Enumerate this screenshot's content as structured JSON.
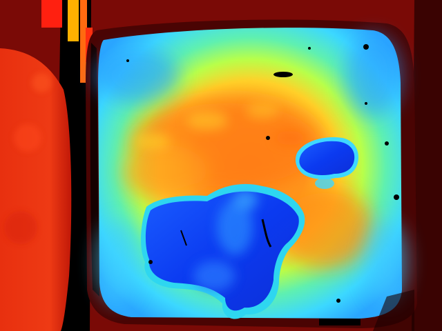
{
  "image": {
    "kind": "depth-map",
    "colormap": "jet",
    "palette": {
      "near": "#0b2de6",
      "mid_blue": "#2a8cff",
      "cyan": "#3fe0ff",
      "green": "#7dff7a",
      "yellow": "#ffe22a",
      "orange": "#ff8a16",
      "red": "#ee2a14",
      "dark_red": "#7a0a06",
      "invalid": "#000000"
    },
    "regions": [
      {
        "name": "left-wall",
        "tone": "red"
      },
      {
        "name": "container-rim",
        "tone": "dark_red"
      },
      {
        "name": "container-floor",
        "tone": "cyan-to-orange"
      },
      {
        "name": "large-object",
        "tone": "near"
      },
      {
        "name": "small-object",
        "tone": "near"
      }
    ]
  }
}
